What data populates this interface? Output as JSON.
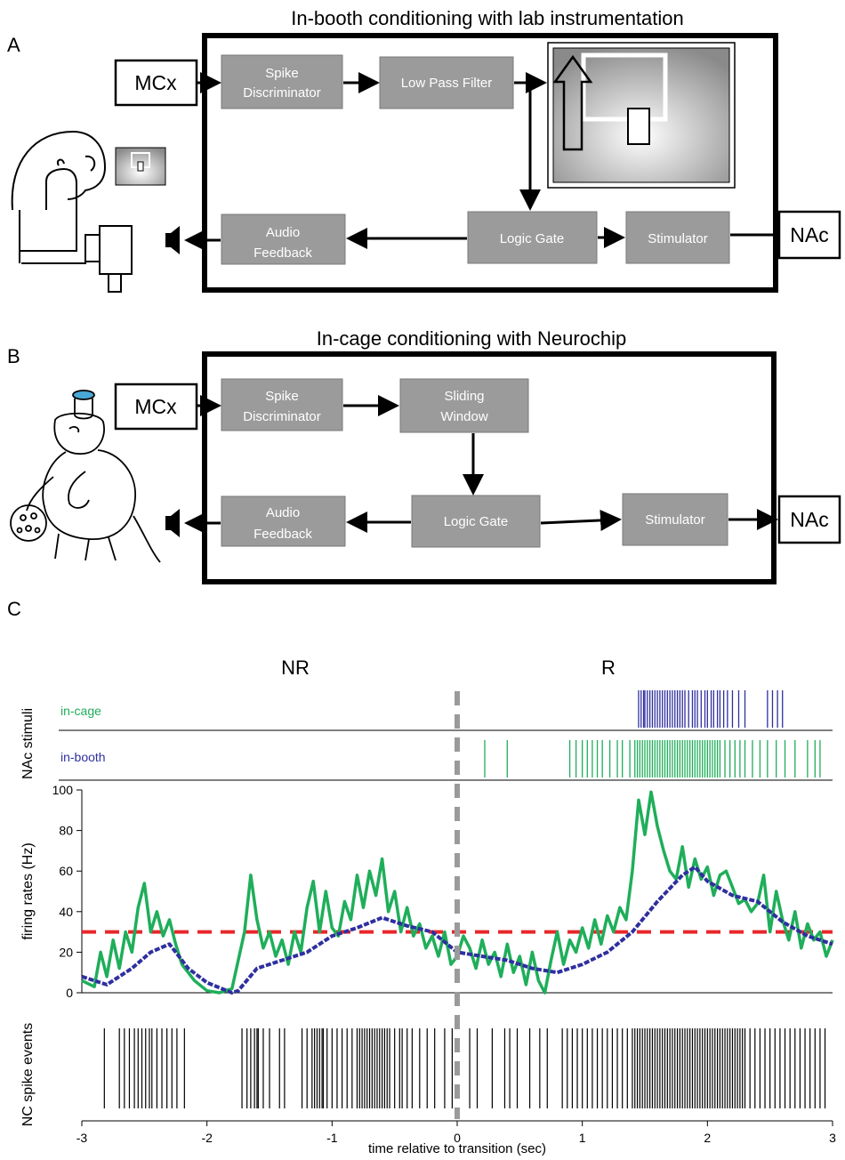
{
  "panel_a": {
    "letter": "A",
    "title": "In-booth conditioning with lab instrumentation",
    "input": "MCx",
    "output": "NAc",
    "blocks": {
      "spike_1": "Spike",
      "spike_2": "Discriminator",
      "lowpass": "Low Pass Filter",
      "audio_1": "Audio",
      "audio_2": "Feedback",
      "logic": "Logic Gate",
      "stim": "Stimulator"
    }
  },
  "panel_b": {
    "letter": "B",
    "title": "In-cage conditioning with Neurochip",
    "input": "MCx",
    "output": "NAc",
    "blocks": {
      "spike_1": "Spike",
      "spike_2": "Discriminator",
      "window_1": "Sliding",
      "window_2": "Window",
      "audio_1": "Audio",
      "audio_2": "Feedback",
      "logic": "Logic Gate",
      "stim": "Stimulator"
    }
  },
  "panel_c": {
    "letter": "C",
    "region_left": "NR",
    "region_right": "R",
    "stim_ylabel": "NAc stimuli",
    "legend_cage": "in-cage",
    "legend_booth": "in-booth",
    "rate_ylabel": "firing rates (Hz)",
    "spike_ylabel": "NC spike events",
    "xlabel": "time relative to transition (sec)",
    "colors": {
      "green": "#1fae5a",
      "blue": "#2f2fa0",
      "threshold": "#e8262a",
      "divider": "#9a9a9a"
    }
  },
  "chart_data": {
    "type": "line",
    "xlim": [
      -3,
      3
    ],
    "ylim": [
      0,
      100
    ],
    "xticks": [
      -3,
      -2,
      -1,
      0,
      1,
      2,
      3
    ],
    "yticks": [
      0,
      20,
      40,
      60,
      80,
      100
    ],
    "threshold": 30,
    "transition_x": 0,
    "series": [
      {
        "name": "in-cage",
        "color": "#2f2fa0",
        "x": [
          -3,
          -2.8,
          -2.6,
          -2.45,
          -2.3,
          -2.15,
          -2.0,
          -1.8,
          -1.75,
          -1.6,
          -1.4,
          -1.2,
          -1.0,
          -0.8,
          -0.6,
          -0.4,
          -0.2,
          0.0,
          0.2,
          0.4,
          0.6,
          0.8,
          1.0,
          1.2,
          1.4,
          1.6,
          1.8,
          1.9,
          2.0,
          2.2,
          2.4,
          2.6,
          2.8,
          3.0
        ],
        "y": [
          8,
          4,
          12,
          20,
          24,
          12,
          5,
          0,
          1,
          12,
          16,
          20,
          28,
          32,
          37,
          33,
          30,
          20,
          18,
          16,
          12,
          10,
          14,
          20,
          30,
          45,
          58,
          62,
          55,
          48,
          45,
          35,
          28,
          24
        ]
      },
      {
        "name": "in-booth",
        "color": "#1fae5a",
        "x": [
          -3,
          -2.9,
          -2.85,
          -2.8,
          -2.75,
          -2.7,
          -2.65,
          -2.6,
          -2.55,
          -2.5,
          -2.45,
          -2.4,
          -2.35,
          -2.3,
          -2.25,
          -2.2,
          -2.1,
          -2.0,
          -1.9,
          -1.8,
          -1.7,
          -1.65,
          -1.6,
          -1.55,
          -1.5,
          -1.45,
          -1.4,
          -1.35,
          -1.3,
          -1.25,
          -1.2,
          -1.15,
          -1.1,
          -1.05,
          -1.0,
          -0.95,
          -0.9,
          -0.85,
          -0.8,
          -0.75,
          -0.7,
          -0.65,
          -0.6,
          -0.55,
          -0.5,
          -0.45,
          -0.4,
          -0.35,
          -0.3,
          -0.25,
          -0.2,
          -0.15,
          -0.1,
          -0.05,
          0.0,
          0.05,
          0.1,
          0.15,
          0.2,
          0.25,
          0.3,
          0.35,
          0.4,
          0.45,
          0.5,
          0.55,
          0.6,
          0.65,
          0.7,
          0.75,
          0.8,
          0.85,
          0.9,
          0.95,
          1.0,
          1.05,
          1.1,
          1.15,
          1.2,
          1.25,
          1.3,
          1.35,
          1.4,
          1.45,
          1.5,
          1.55,
          1.6,
          1.65,
          1.7,
          1.75,
          1.8,
          1.85,
          1.9,
          1.95,
          2.0,
          2.05,
          2.1,
          2.15,
          2.2,
          2.25,
          2.3,
          2.35,
          2.4,
          2.45,
          2.5,
          2.55,
          2.6,
          2.65,
          2.7,
          2.75,
          2.8,
          2.85,
          2.9,
          2.95,
          3.0
        ],
        "y": [
          6,
          3,
          20,
          8,
          26,
          12,
          30,
          20,
          42,
          54,
          30,
          40,
          28,
          36,
          24,
          14,
          6,
          1,
          0,
          2,
          30,
          58,
          36,
          22,
          30,
          18,
          26,
          14,
          30,
          20,
          42,
          55,
          30,
          50,
          32,
          28,
          45,
          36,
          58,
          42,
          60,
          48,
          66,
          40,
          50,
          30,
          42,
          28,
          34,
          22,
          28,
          18,
          30,
          14,
          18,
          28,
          22,
          12,
          26,
          14,
          20,
          8,
          24,
          10,
          18,
          4,
          20,
          6,
          0,
          16,
          30,
          14,
          26,
          20,
          32,
          22,
          36,
          24,
          38,
          30,
          42,
          36,
          60,
          95,
          78,
          99,
          82,
          70,
          60,
          56,
          72,
          52,
          66,
          56,
          62,
          48,
          58,
          60,
          52,
          44,
          46,
          40,
          44,
          58,
          30,
          50,
          36,
          26,
          40,
          22,
          34,
          26,
          30,
          18,
          26
        ]
      }
    ],
    "raster_in_cage": [
      1.45,
      1.47,
      1.49,
      1.5,
      1.52,
      1.54,
      1.56,
      1.58,
      1.6,
      1.62,
      1.64,
      1.66,
      1.68,
      1.7,
      1.72,
      1.74,
      1.76,
      1.78,
      1.8,
      1.82,
      1.85,
      1.88,
      1.9,
      1.92,
      1.95,
      1.98,
      2.0,
      2.03,
      2.05,
      2.08,
      2.1,
      2.13,
      2.16,
      2.2,
      2.25,
      2.3,
      2.48,
      2.52,
      2.56,
      2.6
    ],
    "raster_in_booth": [
      0.22,
      0.4,
      0.9,
      0.95,
      1.0,
      1.04,
      1.08,
      1.12,
      1.16,
      1.22,
      1.28,
      1.32,
      1.38,
      1.42,
      1.44,
      1.46,
      1.48,
      1.5,
      1.52,
      1.54,
      1.56,
      1.58,
      1.6,
      1.62,
      1.64,
      1.66,
      1.68,
      1.7,
      1.72,
      1.74,
      1.76,
      1.78,
      1.8,
      1.82,
      1.84,
      1.86,
      1.88,
      1.9,
      1.92,
      1.94,
      1.96,
      1.98,
      2.0,
      2.02,
      2.04,
      2.06,
      2.08,
      2.1,
      2.14,
      2.18,
      2.22,
      2.26,
      2.3,
      2.36,
      2.42,
      2.48,
      2.55,
      2.62,
      2.7,
      2.8,
      2.86,
      2.9
    ],
    "raster_nc_spikes": [
      -2.82,
      -2.7,
      -2.66,
      -2.62,
      -2.58,
      -2.55,
      -2.52,
      -2.49,
      -2.46,
      -2.44,
      -2.4,
      -2.36,
      -2.32,
      -2.28,
      -2.24,
      -2.18,
      -1.72,
      -1.68,
      -1.65,
      -1.62,
      -1.6,
      -1.59,
      -1.55,
      -1.5,
      -1.42,
      -1.38,
      -1.24,
      -1.2,
      -1.16,
      -1.14,
      -1.12,
      -1.1,
      -1.08,
      -1.07,
      -1.04,
      -1.0,
      -0.96,
      -0.92,
      -0.88,
      -0.84,
      -0.8,
      -0.78,
      -0.76,
      -0.74,
      -0.72,
      -0.7,
      -0.68,
      -0.66,
      -0.64,
      -0.62,
      -0.6,
      -0.58,
      -0.56,
      -0.54,
      -0.5,
      -0.46,
      -0.44,
      -0.4,
      -0.36,
      -0.3,
      -0.24,
      -0.18,
      -0.1,
      -0.04,
      0.1,
      0.16,
      0.28,
      0.38,
      0.42,
      0.48,
      0.58,
      0.66,
      0.72,
      0.84,
      0.88,
      0.92,
      0.96,
      1.0,
      1.04,
      1.08,
      1.12,
      1.16,
      1.2,
      1.24,
      1.28,
      1.32,
      1.36,
      1.4,
      1.42,
      1.44,
      1.46,
      1.48,
      1.5,
      1.52,
      1.54,
      1.56,
      1.58,
      1.6,
      1.62,
      1.64,
      1.66,
      1.68,
      1.7,
      1.72,
      1.74,
      1.76,
      1.78,
      1.8,
      1.82,
      1.84,
      1.86,
      1.88,
      1.9,
      1.92,
      1.94,
      1.96,
      1.98,
      2.0,
      2.02,
      2.04,
      2.06,
      2.08,
      2.1,
      2.12,
      2.14,
      2.16,
      2.18,
      2.2,
      2.22,
      2.24,
      2.26,
      2.28,
      2.3,
      2.34,
      2.38,
      2.42,
      2.46,
      2.5,
      2.54,
      2.58,
      2.62,
      2.66,
      2.7,
      2.74,
      2.78,
      2.82,
      2.86,
      2.9,
      2.94
    ]
  }
}
